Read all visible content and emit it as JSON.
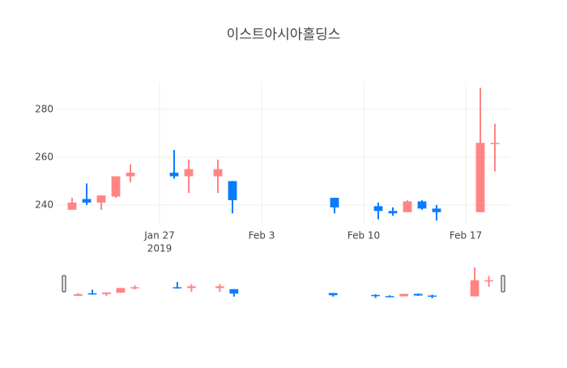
{
  "chart_data": {
    "type": "candlestick",
    "title": "이스트아시아홀딩스",
    "x": [
      "2019-01-21",
      "2019-01-22",
      "2019-01-23",
      "2019-01-24",
      "2019-01-25",
      "2019-01-28",
      "2019-01-29",
      "2019-01-31",
      "2019-02-01",
      "2019-02-08",
      "2019-02-11",
      "2019-02-12",
      "2019-02-13",
      "2019-02-14",
      "2019-02-15",
      "2019-02-18",
      "2019-02-19"
    ],
    "open": [
      238,
      242.5,
      241,
      243.5,
      252,
      253.5,
      252,
      252,
      250,
      243,
      239.5,
      237.5,
      237,
      241.5,
      238.5,
      237,
      265.5
    ],
    "high": [
      243,
      249,
      244,
      252,
      257,
      263,
      259,
      259,
      250,
      243,
      241,
      239,
      242,
      242,
      240,
      289,
      274
    ],
    "low": [
      238,
      240,
      238,
      243,
      249.5,
      251,
      245,
      245,
      236.5,
      236.5,
      234,
      235.5,
      237,
      238,
      233.5,
      237,
      254
    ],
    "close": [
      241,
      241,
      244,
      252,
      253.5,
      252,
      255,
      255,
      242,
      239,
      237.5,
      236.5,
      241.5,
      238.5,
      237,
      266,
      266
    ],
    "increasing_color": "#ff8585",
    "decreasing_color": "#0a7bff",
    "xlim": [
      "2019-01-20",
      "2019-02-20"
    ],
    "xticks": [
      {
        "value": "2019-01-27",
        "label": "Jan 27",
        "sublabel": "2019"
      },
      {
        "value": "2019-02-03",
        "label": "Feb 3"
      },
      {
        "value": "2019-02-10",
        "label": "Feb 10"
      },
      {
        "value": "2019-02-17",
        "label": "Feb 17"
      }
    ],
    "ylim": [
      232.5,
      291.5
    ],
    "yticks": [
      240,
      260,
      280
    ],
    "grid": true,
    "rangeslider": true
  }
}
